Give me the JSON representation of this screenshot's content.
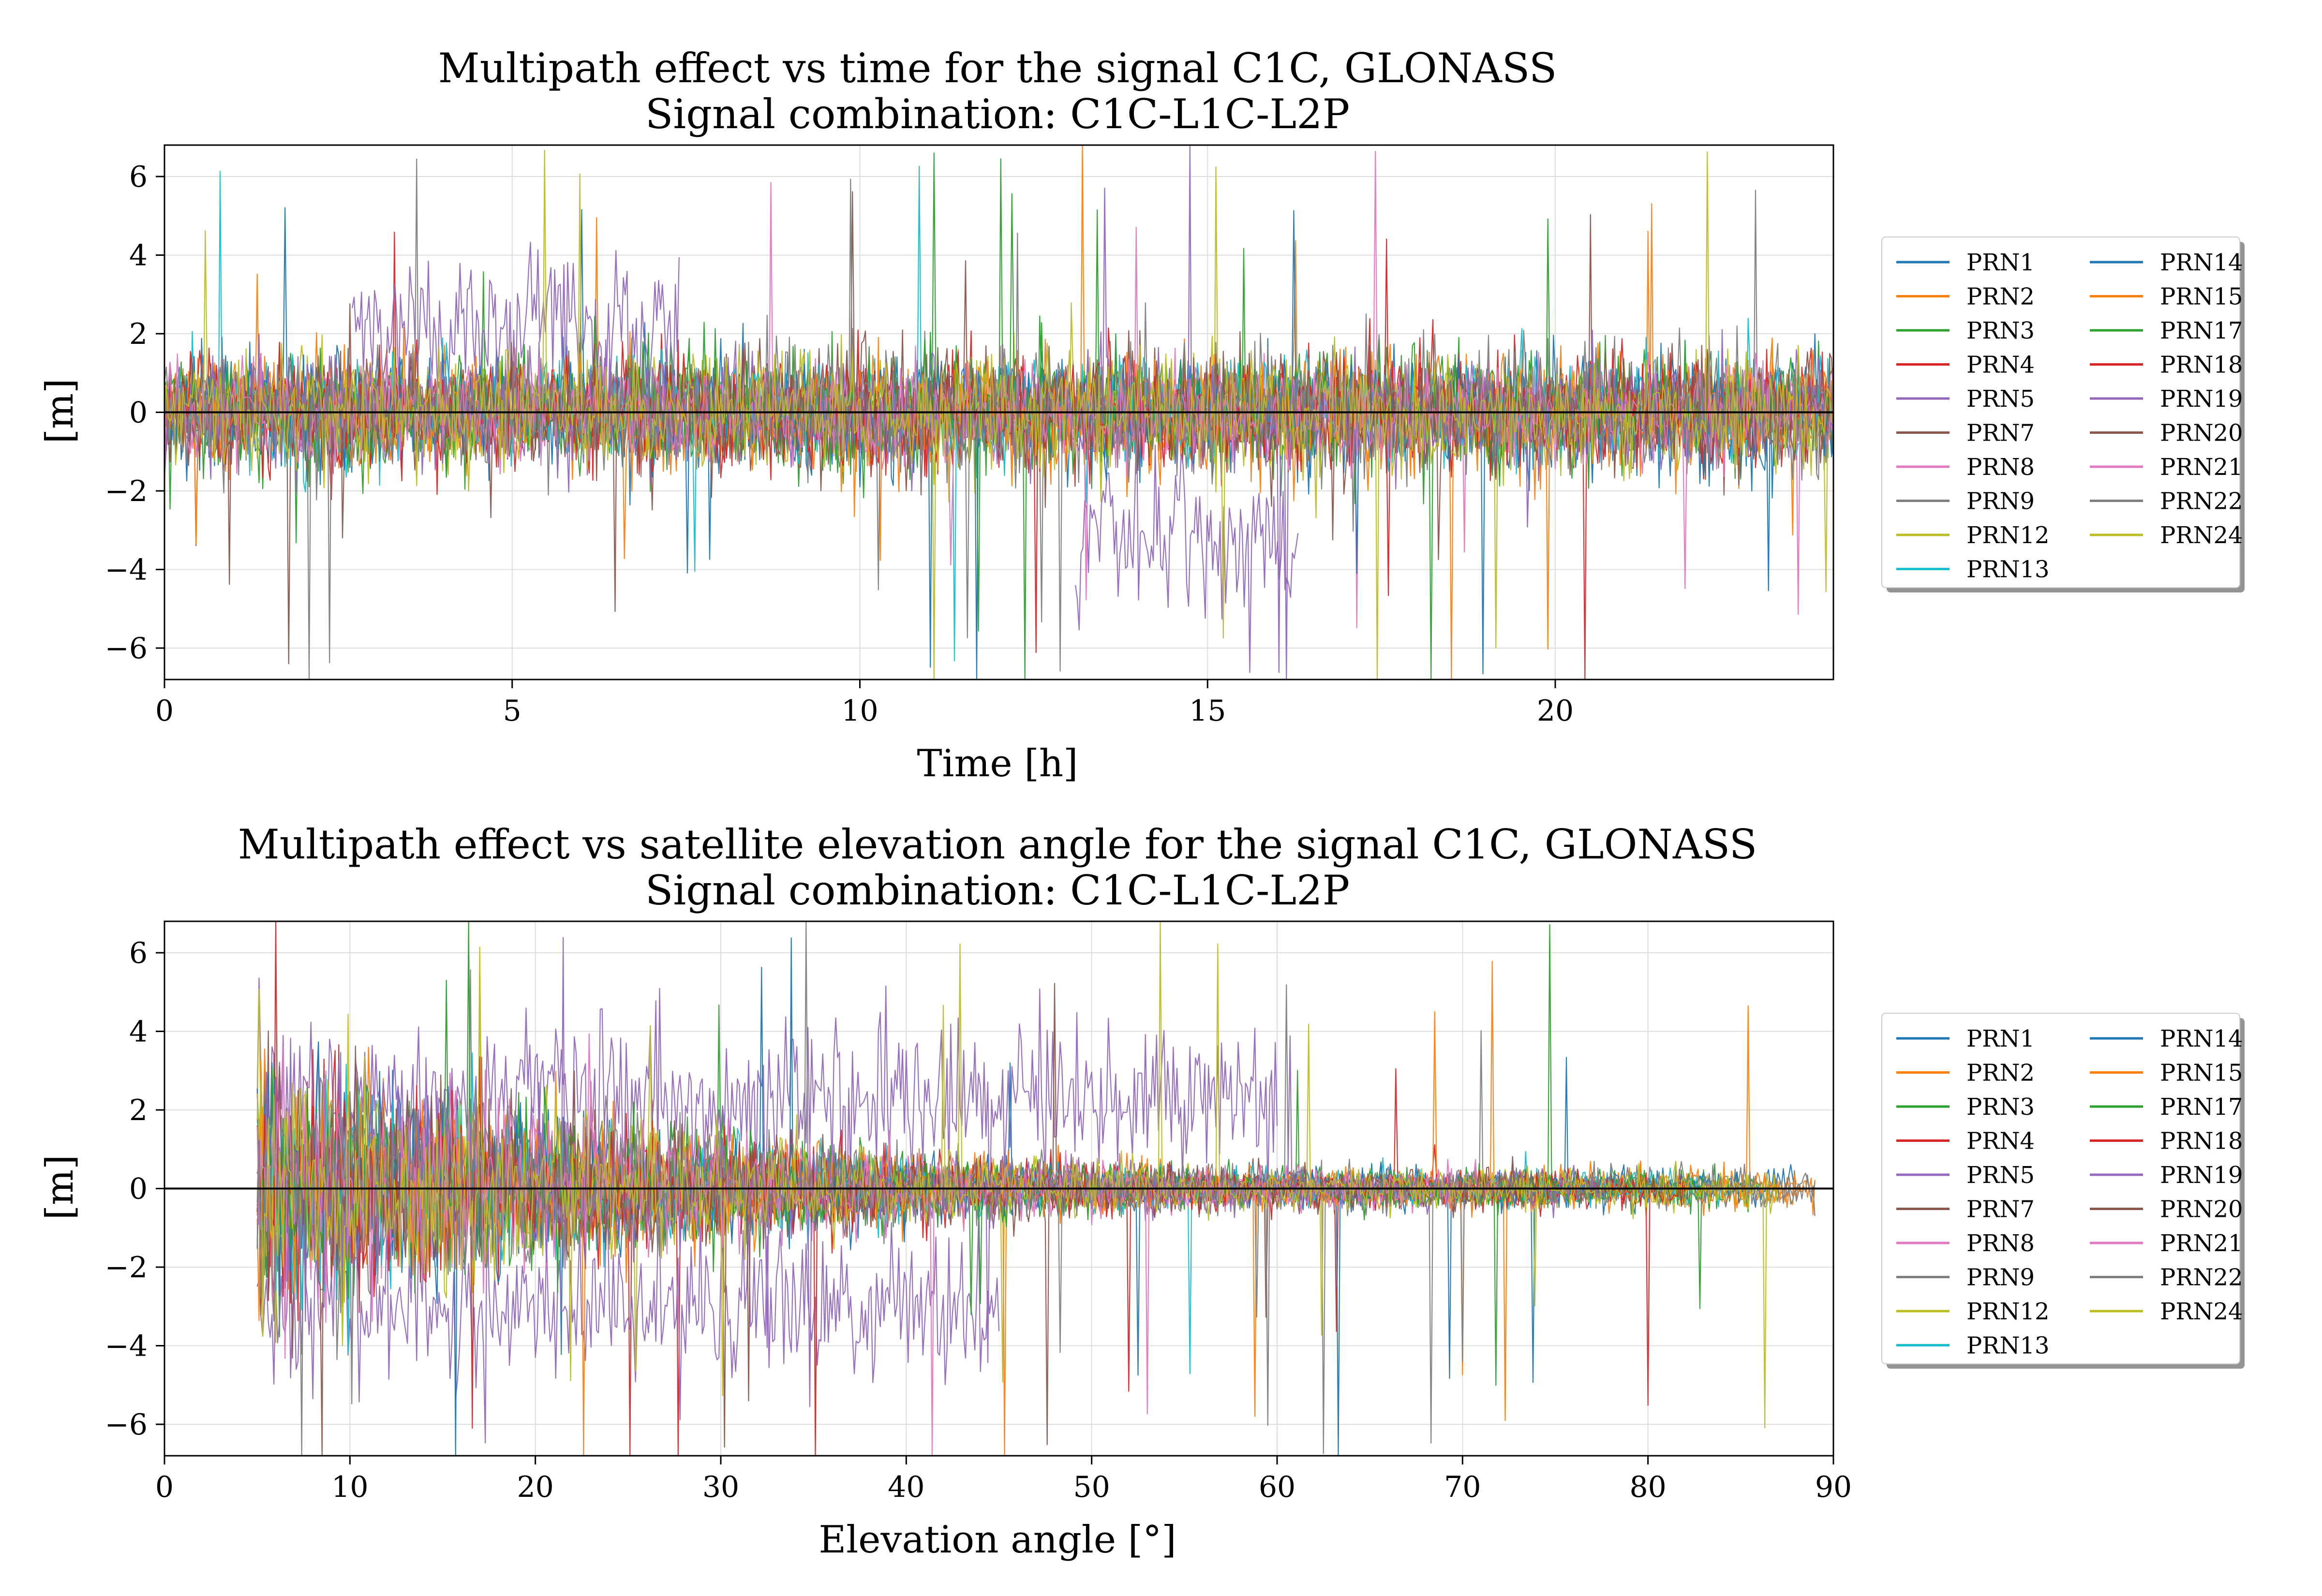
{
  "figure": {
    "background": "#ffffff",
    "grid_color": "#dddddd",
    "zero_line_color": "#000000"
  },
  "chart_data": [
    {
      "type": "line",
      "title": "Multipath effect vs time for the signal C1C, GLONASS",
      "subtitle": "Signal combination: C1C-L1C-L2P",
      "xlabel": "Time [h]",
      "ylabel": "[m]",
      "xlim": [
        0,
        24
      ],
      "ylim": [
        -6.8,
        6.8
      ],
      "xticks": [
        0,
        5,
        10,
        15,
        20
      ],
      "yticks": [
        -6,
        -4,
        -2,
        0,
        2,
        4,
        6
      ],
      "ytick_labels": [
        "−6",
        "−4",
        "−2",
        "0",
        "2",
        "4",
        "6"
      ],
      "grid": true,
      "legend_placement": "right, outside, 2 columns",
      "horizontal_line_y": 0,
      "series": [
        {
          "name": "PRN1",
          "color": "#1f77b4",
          "x_range": [
            0,
            24
          ],
          "noise_sd": 0.7
        },
        {
          "name": "PRN2",
          "color": "#ff7f0e",
          "x_range": [
            0,
            24
          ],
          "noise_sd": 0.7
        },
        {
          "name": "PRN3",
          "color": "#2ca02c",
          "x_range": [
            0,
            24
          ],
          "noise_sd": 0.7
        },
        {
          "name": "PRN4",
          "color": "#d62728",
          "x_range": [
            0,
            24
          ],
          "noise_sd": 0.7
        },
        {
          "name": "PRN5",
          "color": "#9467bd",
          "segments": [
            {
              "x_range": [
                2.7,
                7.4
              ],
              "mean": 2.2,
              "sd": 1.0
            },
            {
              "x_range": [
                13.1,
                16.3
              ],
              "mean": -3.2,
              "sd": 1.0
            }
          ]
        },
        {
          "name": "PRN7",
          "color": "#8c564b",
          "x_range": [
            0,
            24
          ],
          "noise_sd": 0.7
        },
        {
          "name": "PRN8",
          "color": "#e377c2",
          "x_range": [
            0,
            24
          ],
          "noise_sd": 0.6
        },
        {
          "name": "PRN9",
          "color": "#7f7f7f",
          "x_range": [
            0,
            24
          ],
          "noise_sd": 0.7
        },
        {
          "name": "PRN12",
          "color": "#bcbd22",
          "x_range": [
            0,
            24
          ],
          "noise_sd": 0.7
        },
        {
          "name": "PRN13",
          "color": "#17becf",
          "x_range": [
            0,
            24
          ],
          "noise_sd": 0.7
        },
        {
          "name": "PRN14",
          "color": "#1f77b4",
          "x_range": [
            0,
            24
          ],
          "noise_sd": 0.7
        },
        {
          "name": "PRN15",
          "color": "#ff7f0e",
          "x_range": [
            0,
            24
          ],
          "noise_sd": 0.7
        },
        {
          "name": "PRN17",
          "color": "#2ca02c",
          "x_range": [
            0,
            24
          ],
          "noise_sd": 0.7
        },
        {
          "name": "PRN18",
          "color": "#d62728",
          "x_range": [
            0,
            24
          ],
          "noise_sd": 0.7
        },
        {
          "name": "PRN19",
          "color": "#9467bd",
          "x_range": [
            0,
            24
          ],
          "noise_sd": 0.7
        },
        {
          "name": "PRN20",
          "color": "#8c564b",
          "x_range": [
            0,
            24
          ],
          "noise_sd": 0.7
        },
        {
          "name": "PRN21",
          "color": "#e377c2",
          "x_range": [
            0,
            24
          ],
          "noise_sd": 0.6
        },
        {
          "name": "PRN22",
          "color": "#7f7f7f",
          "x_range": [
            0,
            24
          ],
          "noise_sd": 0.7
        },
        {
          "name": "PRN24",
          "color": "#bcbd22",
          "x_range": [
            0,
            24
          ],
          "noise_sd": 0.7
        }
      ]
    },
    {
      "type": "line",
      "title": "Multipath effect vs satellite elevation angle for the signal C1C, GLONASS",
      "subtitle": "Signal combination: C1C-L1C-L2P",
      "xlabel": "Elevation angle [°]",
      "ylabel": "[m]",
      "xlim": [
        0,
        90
      ],
      "ylim": [
        -6.8,
        6.8
      ],
      "xticks": [
        0,
        10,
        20,
        30,
        40,
        50,
        60,
        70,
        80,
        90
      ],
      "yticks": [
        -6,
        -4,
        -2,
        0,
        2,
        4,
        6
      ],
      "ytick_labels": [
        "−6",
        "−4",
        "−2",
        "0",
        "2",
        "4",
        "6"
      ],
      "grid": true,
      "legend_placement": "right, outside, 2 columns",
      "horizontal_line_y": 0,
      "series": [
        {
          "name": "PRN1",
          "color": "#1f77b4",
          "x_range": [
            5,
            88
          ]
        },
        {
          "name": "PRN2",
          "color": "#ff7f0e",
          "x_range": [
            5,
            89
          ]
        },
        {
          "name": "PRN3",
          "color": "#2ca02c",
          "x_range": [
            5,
            86
          ]
        },
        {
          "name": "PRN4",
          "color": "#d62728",
          "x_range": [
            5,
            80
          ]
        },
        {
          "name": "PRN5",
          "color": "#9467bd",
          "segments": [
            {
              "x_range": [
                5,
                45
              ],
              "mean": -3.0
            },
            {
              "x_range": [
                5,
                60
              ],
              "mean": 2.2
            }
          ]
        },
        {
          "name": "PRN7",
          "color": "#8c564b",
          "x_range": [
            5,
            75
          ]
        },
        {
          "name": "PRN8",
          "color": "#e377c2",
          "x_range": [
            5,
            70
          ]
        },
        {
          "name": "PRN9",
          "color": "#7f7f7f",
          "x_range": [
            5,
            89
          ]
        },
        {
          "name": "PRN12",
          "color": "#bcbd22",
          "x_range": [
            5,
            86
          ]
        },
        {
          "name": "PRN13",
          "color": "#17becf",
          "x_range": [
            5,
            84
          ]
        },
        {
          "name": "PRN14",
          "color": "#1f77b4",
          "x_range": [
            5,
            85
          ]
        },
        {
          "name": "PRN15",
          "color": "#ff7f0e",
          "x_range": [
            5,
            88
          ]
        },
        {
          "name": "PRN17",
          "color": "#2ca02c",
          "x_range": [
            5,
            83
          ]
        },
        {
          "name": "PRN18",
          "color": "#d62728",
          "x_range": [
            5,
            82
          ]
        },
        {
          "name": "PRN19",
          "color": "#9467bd",
          "x_range": [
            5,
            78
          ]
        },
        {
          "name": "PRN20",
          "color": "#8c564b",
          "x_range": [
            5,
            74
          ]
        },
        {
          "name": "PRN21",
          "color": "#e377c2",
          "x_range": [
            5,
            72
          ]
        },
        {
          "name": "PRN22",
          "color": "#7f7f7f",
          "x_range": [
            5,
            89
          ]
        },
        {
          "name": "PRN24",
          "color": "#bcbd22",
          "x_range": [
            5,
            87
          ]
        }
      ]
    }
  ]
}
